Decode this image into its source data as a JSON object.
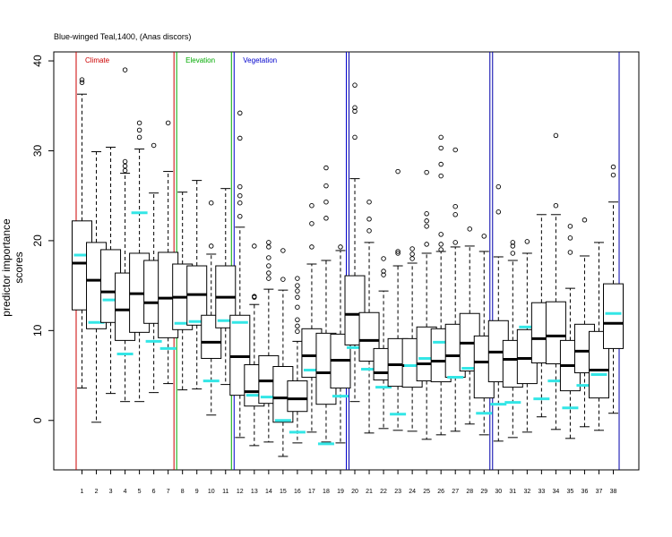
{
  "chart_data": {
    "type": "boxplot",
    "title": "Blue-winged Teal,1400, (Anas discors)",
    "ylabel": "predictor importance scores",
    "xlabel": "",
    "ylim": [
      -5.5,
      41
    ],
    "y_ticks": [
      0,
      10,
      20,
      30,
      40
    ],
    "grid": false,
    "categories": [
      "1",
      "2",
      "3",
      "4",
      "5",
      "6",
      "7",
      "8",
      "9",
      "10",
      "11",
      "12",
      "13",
      "14",
      "15",
      "16",
      "17",
      "18",
      "19",
      "20",
      "21",
      "22",
      "23",
      "24",
      "25",
      "26",
      "27",
      "28",
      "29",
      "30",
      "31",
      "32",
      "33",
      "34",
      "35",
      "36",
      "37",
      "38"
    ],
    "groups": [
      {
        "label": "Climate",
        "start": 1,
        "end": 7,
        "color": "#cc0000"
      },
      {
        "label": "Elevation",
        "start": 8,
        "end": 11,
        "color": "#00aa00"
      },
      {
        "label": "Vegetation",
        "start": 12,
        "end": 19,
        "color": "#0000cc"
      },
      {
        "label": "",
        "start": 20,
        "end": 29,
        "color": "#0000aa"
      },
      {
        "label": "",
        "start": 30,
        "end": 38,
        "color": "#0000aa"
      }
    ],
    "boxes": [
      {
        "label": "1",
        "q1": 12.3,
        "median": 17.5,
        "q3": 22.2,
        "whisker_low": 3.6,
        "whisker_high": 36.3,
        "outliers": [
          37.6,
          37.9
        ],
        "reference": 18.4
      },
      {
        "label": "2",
        "q1": 10.2,
        "median": 15.6,
        "q3": 19.8,
        "whisker_low": -0.2,
        "whisker_high": 29.9,
        "outliers": [],
        "reference": 10.9
      },
      {
        "label": "3",
        "q1": 10.9,
        "median": 14.3,
        "q3": 19.0,
        "whisker_low": 3.0,
        "whisker_high": 30.4,
        "outliers": [],
        "reference": 13.4
      },
      {
        "label": "4",
        "q1": 8.9,
        "median": 12.3,
        "q3": 16.4,
        "whisker_low": 2.1,
        "whisker_high": 27.5,
        "outliers": [
          27.8,
          28.3,
          28.8,
          39.0
        ],
        "reference": 7.4
      },
      {
        "label": "5",
        "q1": 9.8,
        "median": 14.1,
        "q3": 18.6,
        "whisker_low": 2.1,
        "whisker_high": 30.2,
        "outliers": [
          31.5,
          32.3,
          33.1
        ],
        "reference": 23.1
      },
      {
        "label": "6",
        "q1": 10.8,
        "median": 13.1,
        "q3": 17.8,
        "whisker_low": 3.1,
        "whisker_high": 25.3,
        "outliers": [
          30.6
        ],
        "reference": 8.8
      },
      {
        "label": "7",
        "q1": 9.2,
        "median": 13.6,
        "q3": 18.7,
        "whisker_low": 4.1,
        "whisker_high": 27.7,
        "outliers": [
          33.1
        ],
        "reference": 8.0
      },
      {
        "label": "8",
        "q1": 10.1,
        "median": 13.7,
        "q3": 17.4,
        "whisker_low": 3.4,
        "whisker_high": 25.4,
        "outliers": [],
        "reference": 10.8
      },
      {
        "label": "9",
        "q1": 10.6,
        "median": 14.0,
        "q3": 17.2,
        "whisker_low": 3.5,
        "whisker_high": 26.7,
        "outliers": [],
        "reference": 11.0
      },
      {
        "label": "10",
        "q1": 6.9,
        "median": 8.7,
        "q3": 11.7,
        "whisker_low": 0.6,
        "whisker_high": 18.5,
        "outliers": [
          19.4,
          24.2
        ],
        "reference": 4.4
      },
      {
        "label": "11",
        "q1": 10.3,
        "median": 13.7,
        "q3": 17.2,
        "whisker_low": 4.0,
        "whisker_high": 25.8,
        "outliers": [],
        "reference": 11.1
      },
      {
        "label": "12",
        "q1": 2.8,
        "median": 7.1,
        "q3": 11.7,
        "whisker_low": -1.9,
        "whisker_high": 21.5,
        "outliers": [
          22.7,
          24.2,
          25.0,
          26.0,
          31.4,
          34.2
        ],
        "reference": 10.9
      },
      {
        "label": "13",
        "q1": 1.6,
        "median": 3.2,
        "q3": 6.2,
        "whisker_low": -2.8,
        "whisker_high": 12.9,
        "outliers": [
          13.7,
          13.8,
          19.4
        ],
        "reference": 2.8
      },
      {
        "label": "14",
        "q1": 1.9,
        "median": 4.4,
        "q3": 7.2,
        "whisker_low": -2.4,
        "whisker_high": 14.6,
        "outliers": [
          15.8,
          16.4,
          17.2,
          18.1,
          19.3,
          19.8
        ],
        "reference": 2.6
      },
      {
        "label": "15",
        "q1": -0.2,
        "median": 2.5,
        "q3": 6.0,
        "whisker_low": -4.0,
        "whisker_high": 14.5,
        "outliers": [
          15.7,
          18.9
        ],
        "reference": 0.0
      },
      {
        "label": "16",
        "q1": 1.0,
        "median": 2.4,
        "q3": 4.4,
        "whisker_low": -2.5,
        "whisker_high": 8.8,
        "outliers": [
          9.9,
          10.5,
          11.2,
          12.6,
          13.7,
          14.4,
          15.0,
          15.8
        ],
        "reference": -1.3
      },
      {
        "label": "17",
        "q1": 4.8,
        "median": 7.2,
        "q3": 10.2,
        "whisker_low": -1.3,
        "whisker_high": 17.4,
        "outliers": [
          19.3,
          21.9,
          23.9
        ],
        "reference": 5.6
      },
      {
        "label": "18",
        "q1": 1.8,
        "median": 5.3,
        "q3": 9.7,
        "whisker_low": -2.4,
        "whisker_high": 17.8,
        "outliers": [
          22.5,
          24.3,
          26.1,
          28.1
        ],
        "reference": -2.6
      },
      {
        "label": "19",
        "q1": 3.6,
        "median": 6.7,
        "q3": 9.6,
        "whisker_low": -2.5,
        "whisker_high": 18.9,
        "outliers": [
          19.3
        ],
        "reference": 2.7
      },
      {
        "label": "20",
        "q1": 8.4,
        "median": 11.8,
        "q3": 16.1,
        "whisker_low": 2.1,
        "whisker_high": 26.9,
        "outliers": [
          31.5,
          34.4,
          34.8,
          37.3
        ],
        "reference": 8.1
      },
      {
        "label": "21",
        "q1": 6.6,
        "median": 8.9,
        "q3": 12.0,
        "whisker_low": -1.4,
        "whisker_high": 19.8,
        "outliers": [
          21.1,
          22.4,
          24.3
        ],
        "reference": 5.7
      },
      {
        "label": "22",
        "q1": 4.5,
        "median": 5.3,
        "q3": 8.0,
        "whisker_low": -0.9,
        "whisker_high": 14.4,
        "outliers": [
          16.2,
          16.6,
          18.0
        ],
        "reference": 3.7
      },
      {
        "label": "23",
        "q1": 3.8,
        "median": 6.2,
        "q3": 9.1,
        "whisker_low": -1.1,
        "whisker_high": 17.2,
        "outliers": [
          18.6,
          18.8,
          27.7
        ],
        "reference": 0.7
      },
      {
        "label": "24",
        "q1": 3.7,
        "median": 6.1,
        "q3": 9.1,
        "whisker_low": -1.2,
        "whisker_high": 17.5,
        "outliers": [
          18.0,
          18.5,
          19.1
        ],
        "reference": 6.1
      },
      {
        "label": "25",
        "q1": 4.4,
        "median": 6.3,
        "q3": 10.4,
        "whisker_low": -2.1,
        "whisker_high": 18.6,
        "outliers": [
          19.6,
          21.6,
          22.2,
          23.0,
          27.6
        ],
        "reference": 6.9
      },
      {
        "label": "26",
        "q1": 4.3,
        "median": 6.6,
        "q3": 10.2,
        "whisker_low": -1.6,
        "whisker_high": 18.8,
        "outliers": [
          19.0,
          19.6,
          20.7,
          27.2,
          28.5,
          30.3,
          31.5
        ],
        "reference": 8.7
      },
      {
        "label": "27",
        "q1": 4.8,
        "median": 7.2,
        "q3": 10.7,
        "whisker_low": -1.2,
        "whisker_high": 19.3,
        "outliers": [
          19.8,
          22.9,
          23.8,
          30.1
        ],
        "reference": 4.8
      },
      {
        "label": "28",
        "q1": 5.5,
        "median": 8.6,
        "q3": 11.9,
        "whisker_low": -0.4,
        "whisker_high": 19.4,
        "outliers": [
          21.3
        ],
        "reference": 5.8
      },
      {
        "label": "29",
        "q1": 2.5,
        "median": 6.5,
        "q3": 9.4,
        "whisker_low": -1.6,
        "whisker_high": 18.8,
        "outliers": [
          20.5
        ],
        "reference": 0.8
      },
      {
        "label": "30",
        "q1": 4.3,
        "median": 7.6,
        "q3": 11.1,
        "whisker_low": -2.3,
        "whisker_high": 18.2,
        "outliers": [
          23.2,
          26.0
        ],
        "reference": 1.8
      },
      {
        "label": "31",
        "q1": 3.7,
        "median": 6.8,
        "q3": 8.9,
        "whisker_low": -1.9,
        "whisker_high": 17.8,
        "outliers": [
          18.6,
          19.4,
          19.8
        ],
        "reference": 2.0
      },
      {
        "label": "32",
        "q1": 4.1,
        "median": 6.9,
        "q3": 10.1,
        "whisker_low": -1.3,
        "whisker_high": 18.6,
        "outliers": [
          19.9
        ],
        "reference": 10.4
      },
      {
        "label": "33",
        "q1": 6.4,
        "median": 9.1,
        "q3": 13.1,
        "whisker_low": 0.4,
        "whisker_high": 22.9,
        "outliers": [],
        "reference": 2.4
      },
      {
        "label": "34",
        "q1": 6.3,
        "median": 9.4,
        "q3": 13.2,
        "whisker_low": -1.0,
        "whisker_high": 22.9,
        "outliers": [
          23.9,
          31.7
        ],
        "reference": 4.4
      },
      {
        "label": "35",
        "q1": 3.3,
        "median": 6.1,
        "q3": 8.9,
        "whisker_low": -2.0,
        "whisker_high": 14.7,
        "outliers": [
          18.7,
          20.3,
          21.6
        ],
        "reference": 1.4
      },
      {
        "label": "36",
        "q1": 5.3,
        "median": 7.7,
        "q3": 10.7,
        "whisker_low": -0.7,
        "whisker_high": 18.3,
        "outliers": [
          22.3
        ],
        "reference": 3.9
      },
      {
        "label": "37",
        "q1": 2.5,
        "median": 5.6,
        "q3": 9.9,
        "whisker_low": -1.1,
        "whisker_high": 19.8,
        "outliers": [],
        "reference": 5.1
      },
      {
        "label": "38",
        "q1": 8.0,
        "median": 10.8,
        "q3": 15.2,
        "whisker_low": 0.8,
        "whisker_high": 24.3,
        "outliers": [
          27.3,
          28.2
        ],
        "reference": 11.9
      }
    ]
  },
  "colors": {
    "box": "#000000",
    "reference_marker": "#33e6e6",
    "axis": "#000000"
  }
}
